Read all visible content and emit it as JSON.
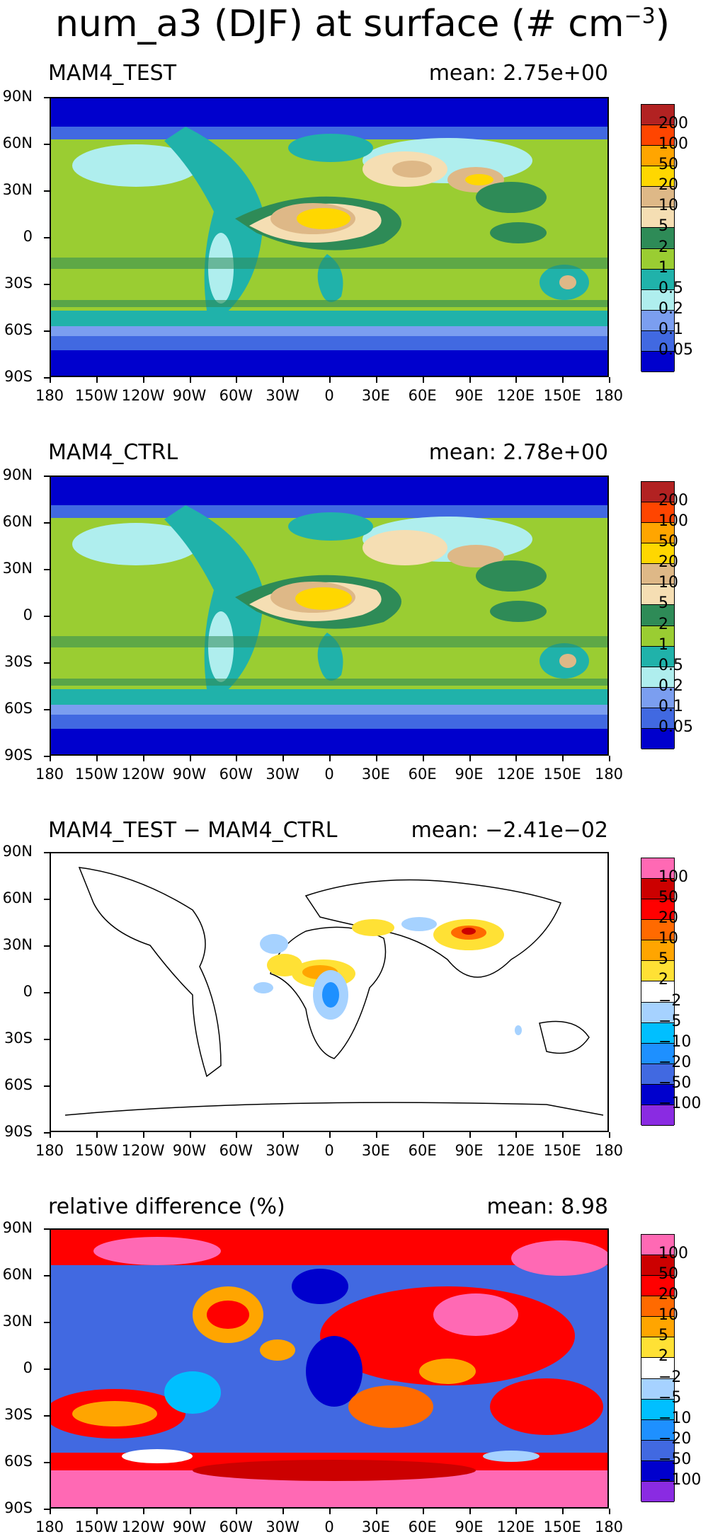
{
  "figure": {
    "title_main": "num_a3 (DJF) at surface (# cm",
    "title_sup": "−3",
    "title_end": ")"
  },
  "axes": {
    "lat_labels": [
      "90N",
      "60N",
      "30N",
      "0",
      "30S",
      "60S",
      "90S"
    ],
    "lon_labels": [
      "180",
      "150W",
      "120W",
      "90W",
      "60W",
      "30W",
      "0",
      "30E",
      "60E",
      "90E",
      "120E",
      "150E",
      "180"
    ]
  },
  "chart_data": [
    {
      "type": "heatmap",
      "title": "MAM4_TEST",
      "mean_label": "mean: 2.75e+00",
      "levels": [
        "200",
        "100",
        "50",
        "20",
        "10",
        "5",
        "2",
        "1",
        "0.5",
        "0.2",
        "0.1",
        "0.05"
      ],
      "colors": [
        "#b22222",
        "#ff4500",
        "#ffa500",
        "#ffd700",
        "#deb887",
        "#f5deb3",
        "#2e8b57",
        "#9acd32",
        "#20b2aa",
        "#afeeee",
        "#7b9ef0",
        "#4169e1",
        "#0000cd"
      ]
    },
    {
      "type": "heatmap",
      "title": "MAM4_CTRL",
      "mean_label": "mean: 2.78e+00",
      "levels": [
        "200",
        "100",
        "50",
        "20",
        "10",
        "5",
        "2",
        "1",
        "0.5",
        "0.2",
        "0.1",
        "0.05"
      ],
      "colors": [
        "#b22222",
        "#ff4500",
        "#ffa500",
        "#ffd700",
        "#deb887",
        "#f5deb3",
        "#2e8b57",
        "#9acd32",
        "#20b2aa",
        "#afeeee",
        "#7b9ef0",
        "#4169e1",
        "#0000cd"
      ]
    },
    {
      "type": "heatmap",
      "title": "MAM4_TEST − MAM4_CTRL",
      "mean_label": "mean: −2.41e−02",
      "levels": [
        "100",
        "50",
        "20",
        "10",
        "5",
        "2",
        "−2",
        "−5",
        "−10",
        "−20",
        "−50",
        "−100"
      ],
      "colors": [
        "#ff69b4",
        "#cc0000",
        "#ff0000",
        "#ff6a00",
        "#ffa500",
        "#ffe135",
        "#ffffff",
        "#a6d2ff",
        "#00bfff",
        "#1e90ff",
        "#4169e1",
        "#0000cd",
        "#8a2be2"
      ]
    },
    {
      "type": "heatmap",
      "title": "relative difference (%)",
      "mean_label": "mean:   8.98",
      "levels": [
        "100",
        "50",
        "20",
        "10",
        "5",
        "2",
        "−2",
        "−5",
        "−10",
        "−20",
        "−50",
        "−100"
      ],
      "colors": [
        "#ff69b4",
        "#cc0000",
        "#ff0000",
        "#ff6a00",
        "#ffa500",
        "#ffe135",
        "#ffffff",
        "#a6d2ff",
        "#00bfff",
        "#1e90ff",
        "#4169e1",
        "#0000cd",
        "#8a2be2"
      ]
    }
  ]
}
